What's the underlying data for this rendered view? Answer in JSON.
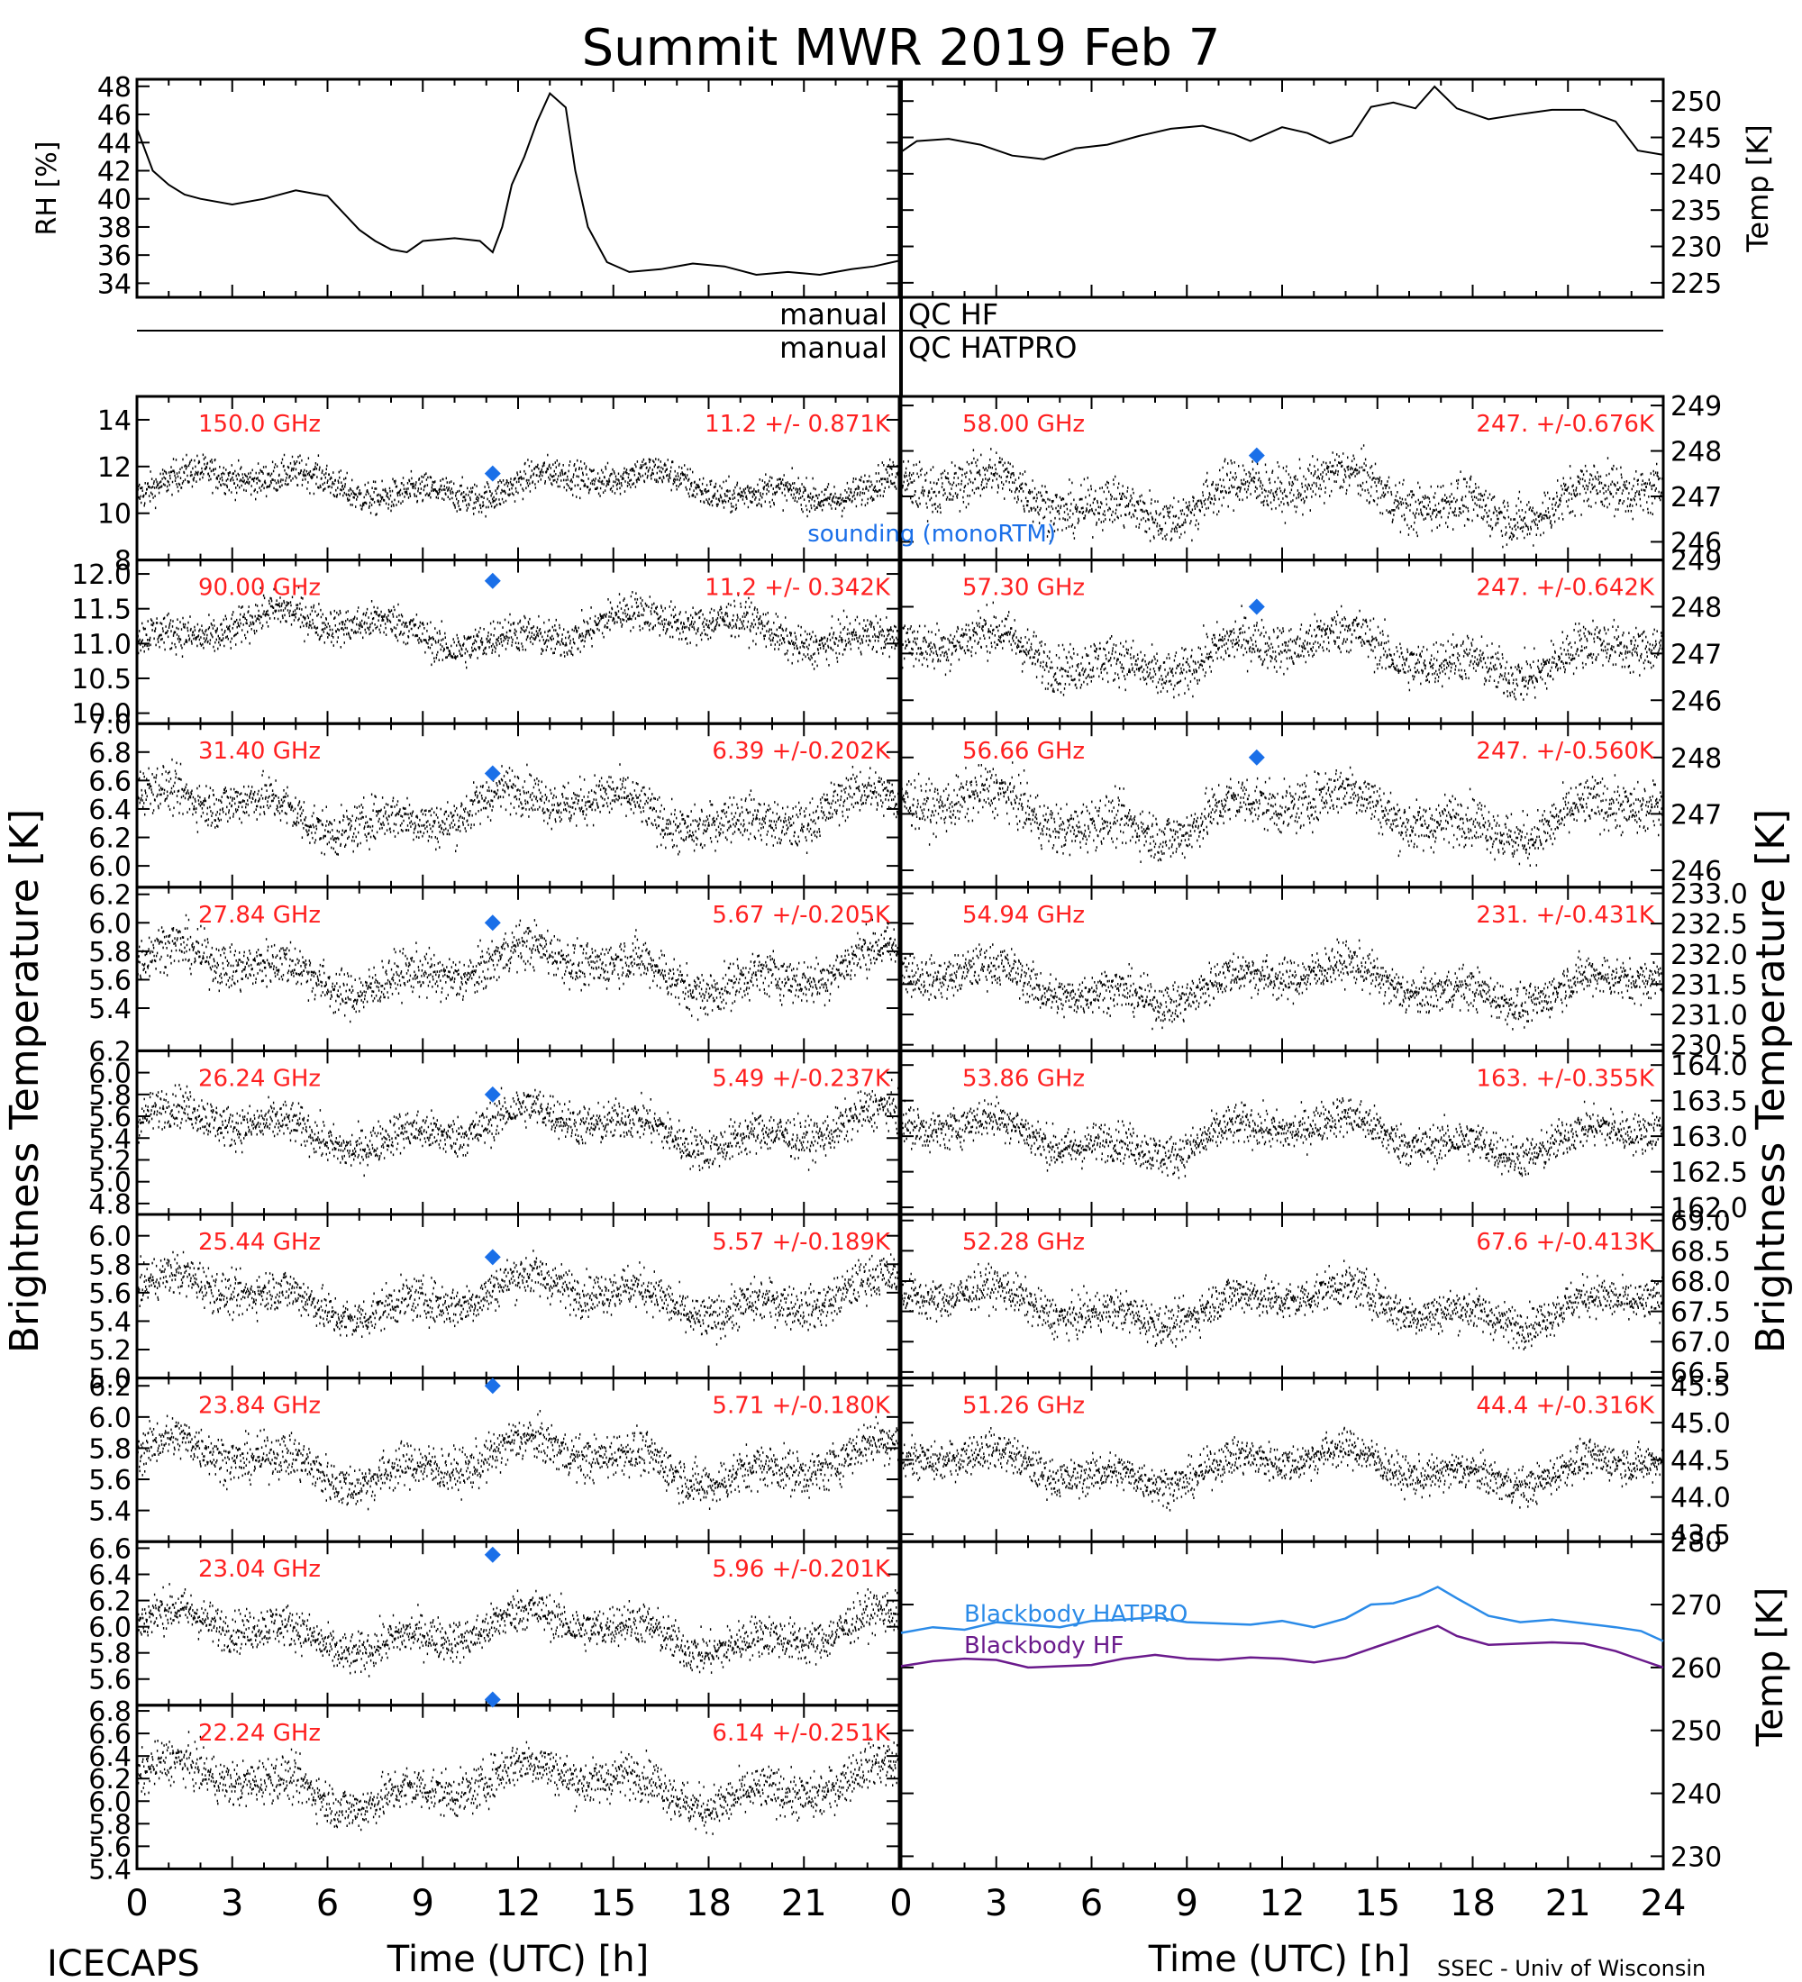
{
  "title": "Summit MWR 2019 Feb  7",
  "footer": {
    "left": "ICECAPS",
    "right": "SSEC - Univ of Wisconsin",
    "xlabel_left": "Time (UTC) [h]",
    "xlabel_right": "Time (UTC) [h]"
  },
  "qc": {
    "left_top": "manual",
    "right_top": "QC HF",
    "left_bottom": "manual",
    "right_bottom": "QC HATPRO"
  },
  "colors": {
    "trace": "#000000",
    "channel_label": "#ff2020",
    "sounding": "#1a6fe8",
    "blackbody_hatpro": "#2b8be8",
    "blackbody_hf": "#6a1a8c"
  },
  "axis_titles": {
    "left_tb": "Brightness Temperature [K]",
    "right_tb": "Brightness Temperature [K]",
    "rh": "RH [%]",
    "temp": "Temp [K]",
    "bb_temp": "Temp [K]"
  },
  "sounding_label": "sounding (monoRTM)",
  "chart_data": [
    {
      "id": "rh",
      "type": "line",
      "xlim": [
        0,
        24
      ],
      "ylim": [
        33,
        48.5
      ],
      "yticks": [
        "34",
        "36",
        "38",
        "40",
        "42",
        "44",
        "46",
        "48"
      ],
      "ylabel": "RH [%]",
      "points": [
        [
          0,
          45
        ],
        [
          0.5,
          42
        ],
        [
          1,
          41
        ],
        [
          1.5,
          40.3
        ],
        [
          2,
          40
        ],
        [
          3,
          39.6
        ],
        [
          4,
          40
        ],
        [
          5,
          40.6
        ],
        [
          6,
          40.2
        ],
        [
          6.5,
          39
        ],
        [
          7,
          37.8
        ],
        [
          7.5,
          37
        ],
        [
          8,
          36.4
        ],
        [
          8.5,
          36.2
        ],
        [
          9,
          37
        ],
        [
          10,
          37.2
        ],
        [
          10.8,
          37
        ],
        [
          11.2,
          36.2
        ],
        [
          11.5,
          38
        ],
        [
          11.8,
          41
        ],
        [
          12.2,
          43
        ],
        [
          12.6,
          45.5
        ],
        [
          13,
          47.5
        ],
        [
          13.5,
          46.5
        ],
        [
          13.8,
          42
        ],
        [
          14.2,
          38
        ],
        [
          14.8,
          35.5
        ],
        [
          15.5,
          34.8
        ],
        [
          16.5,
          35
        ],
        [
          17.5,
          35.4
        ],
        [
          18.5,
          35.2
        ],
        [
          19.5,
          34.6
        ],
        [
          20.5,
          34.8
        ],
        [
          21.5,
          34.6
        ],
        [
          22.5,
          35
        ],
        [
          23.2,
          35.2
        ],
        [
          24,
          35.6
        ]
      ]
    },
    {
      "id": "air_temp",
      "type": "line",
      "xlim": [
        0,
        24
      ],
      "ylim": [
        223,
        253
      ],
      "yticks": [
        "225",
        "230",
        "235",
        "240",
        "245",
        "250"
      ],
      "ylabel": "Temp [K]",
      "points": [
        [
          0,
          243
        ],
        [
          0.5,
          244.5
        ],
        [
          1.5,
          244.8
        ],
        [
          2.5,
          244
        ],
        [
          3.5,
          242.5
        ],
        [
          4.5,
          242
        ],
        [
          5.5,
          243.5
        ],
        [
          6.5,
          244
        ],
        [
          7.5,
          245.2
        ],
        [
          8.5,
          246.2
        ],
        [
          9.5,
          246.6
        ],
        [
          10.5,
          245.4
        ],
        [
          11,
          244.5
        ],
        [
          12,
          246.4
        ],
        [
          12.8,
          245.6
        ],
        [
          13.5,
          244.2
        ],
        [
          14.2,
          245.2
        ],
        [
          14.8,
          249.2
        ],
        [
          15.5,
          249.8
        ],
        [
          16.2,
          249
        ],
        [
          16.8,
          252
        ],
        [
          17.5,
          249
        ],
        [
          18.5,
          247.5
        ],
        [
          19.5,
          248.2
        ],
        [
          20.5,
          248.8
        ],
        [
          21.5,
          248.8
        ],
        [
          22.5,
          247.2
        ],
        [
          23.2,
          243.2
        ],
        [
          24,
          242.6
        ]
      ]
    },
    {
      "id": "ch_150",
      "type": "scatter",
      "label": "150.0 GHz",
      "stats": "11.2 +/- 0.871K",
      "ylim": [
        8,
        15
      ],
      "yticks": [
        "8",
        "10",
        "12",
        "14"
      ],
      "mean": 11.2,
      "std": 0.871,
      "sounding": {
        "x": 11.2,
        "y": 11.7
      }
    },
    {
      "id": "ch_90",
      "type": "scatter",
      "label": "90.00 GHz",
      "stats": "11.2 +/- 0.342K",
      "ylim": [
        9.85,
        12.2
      ],
      "yticks": [
        "10.0",
        "10.5",
        "11.0",
        "11.5",
        "12.0"
      ],
      "mean": 11.2,
      "std": 0.342,
      "sounding": {
        "x": 11.2,
        "y": 11.9
      }
    },
    {
      "id": "ch_3140",
      "type": "scatter",
      "label": "31.40 GHz",
      "stats": "6.39 +/-0.202K",
      "ylim": [
        5.85,
        7.0
      ],
      "yticks": [
        "6.0",
        "6.2",
        "6.4",
        "6.6",
        "6.8",
        "7.0"
      ],
      "mean": 6.39,
      "std": 0.202,
      "sounding": {
        "x": 11.2,
        "y": 6.65
      }
    },
    {
      "id": "ch_2784",
      "type": "scatter",
      "label": "27.84 GHz",
      "stats": "5.67 +/-0.205K",
      "ylim": [
        5.1,
        6.25
      ],
      "yticks": [
        "5.4",
        "5.6",
        "5.8",
        "6.0",
        "6.2"
      ],
      "mean": 5.67,
      "std": 0.205,
      "sounding": {
        "x": 11.2,
        "y": 6.0
      }
    },
    {
      "id": "ch_2624",
      "type": "scatter",
      "label": "26.24 GHz",
      "stats": "5.49 +/-0.237K",
      "ylim": [
        4.7,
        6.2
      ],
      "yticks": [
        "4.8",
        "5.0",
        "5.2",
        "5.4",
        "5.6",
        "5.8",
        "6.0",
        "6.2"
      ],
      "mean": 5.49,
      "std": 0.237,
      "sounding": {
        "x": 11.2,
        "y": 5.8
      }
    },
    {
      "id": "ch_2544",
      "type": "scatter",
      "label": "25.44 GHz",
      "stats": "5.57 +/-0.189K",
      "ylim": [
        5.0,
        6.15
      ],
      "yticks": [
        "5.0",
        "5.2",
        "5.4",
        "5.6",
        "5.8",
        "6.0"
      ],
      "mean": 5.57,
      "std": 0.189,
      "sounding": {
        "x": 11.2,
        "y": 5.85
      }
    },
    {
      "id": "ch_2384",
      "type": "scatter",
      "label": "23.84 GHz",
      "stats": "5.71 +/-0.180K",
      "ylim": [
        5.2,
        6.25
      ],
      "yticks": [
        "5.4",
        "5.6",
        "5.8",
        "6.0",
        "6.2"
      ],
      "mean": 5.71,
      "std": 0.18,
      "sounding": {
        "x": 11.2,
        "y": 6.2
      }
    },
    {
      "id": "ch_2304",
      "type": "scatter",
      "label": "23.04 GHz",
      "stats": "5.96 +/-0.201K",
      "ylim": [
        5.4,
        6.65
      ],
      "yticks": [
        "5.6",
        "5.8",
        "6.0",
        "6.2",
        "6.4",
        "6.6"
      ],
      "mean": 5.96,
      "std": 0.201,
      "sounding": {
        "x": 11.2,
        "y": 6.55
      }
    },
    {
      "id": "ch_2224",
      "type": "scatter",
      "label": "22.24 GHz",
      "stats": "6.14 +/-0.251K",
      "ylim": [
        5.4,
        6.85
      ],
      "yticks": [
        "5.4",
        "5.6",
        "5.8",
        "6.0",
        "6.2",
        "6.4",
        "6.6",
        "6.8"
      ],
      "mean": 6.14,
      "std": 0.251,
      "sounding": {
        "x": 11.2,
        "y": 6.9
      }
    },
    {
      "id": "ch_5800",
      "type": "scatter",
      "label": "58.00 GHz",
      "stats": "247. +/-0.676K",
      "ylim": [
        245.6,
        249.2
      ],
      "yticks": [
        "246",
        "247",
        "248",
        "249"
      ],
      "mean": 247,
      "std": 0.676,
      "sounding": {
        "x": 11.2,
        "y": 247.9
      }
    },
    {
      "id": "ch_5730",
      "type": "scatter",
      "label": "57.30 GHz",
      "stats": "247. +/-0.642K",
      "ylim": [
        245.5,
        249.0
      ],
      "yticks": [
        "246",
        "247",
        "248",
        "249"
      ],
      "mean": 247,
      "std": 0.642,
      "sounding": {
        "x": 11.2,
        "y": 248.0
      }
    },
    {
      "id": "ch_5666",
      "type": "scatter",
      "label": "56.66 GHz",
      "stats": "247. +/-0.560K",
      "ylim": [
        245.7,
        248.6
      ],
      "yticks": [
        "246",
        "247",
        "248"
      ],
      "mean": 247,
      "std": 0.56,
      "sounding": {
        "x": 11.2,
        "y": 248.0
      }
    },
    {
      "id": "ch_5494",
      "type": "scatter",
      "label": "54.94 GHz",
      "stats": "231. +/-0.431K",
      "ylim": [
        230.4,
        233.1
      ],
      "yticks": [
        "230.5",
        "231.0",
        "231.5",
        "232.0",
        "232.5",
        "233.0"
      ],
      "mean": 231.5,
      "std": 0.431
    },
    {
      "id": "ch_5386",
      "type": "scatter",
      "label": "53.86 GHz",
      "stats": "163. +/-0.355K",
      "ylim": [
        161.9,
        164.2
      ],
      "yticks": [
        "162.0",
        "162.5",
        "163.0",
        "163.5",
        "164.0"
      ],
      "mean": 163,
      "std": 0.355
    },
    {
      "id": "ch_5228",
      "type": "scatter",
      "label": "52.28 GHz",
      "stats": "67.6 +/-0.413K",
      "ylim": [
        66.4,
        69.1
      ],
      "yticks": [
        "66.5",
        "67.0",
        "67.5",
        "68.0",
        "68.5",
        "69.0"
      ],
      "mean": 67.6,
      "std": 0.413
    },
    {
      "id": "ch_5126",
      "type": "scatter",
      "label": "51.26 GHz",
      "stats": "44.4 +/-0.316K",
      "ylim": [
        43.4,
        45.6
      ],
      "yticks": [
        "43.5",
        "44.0",
        "44.5",
        "45.0",
        "45.5"
      ],
      "mean": 44.4,
      "std": 0.316
    },
    {
      "id": "blackbody",
      "type": "line",
      "xlim": [
        0,
        24
      ],
      "ylim": [
        228,
        280
      ],
      "yticks": [
        "230",
        "240",
        "250",
        "260",
        "270",
        "280"
      ],
      "ylabel": "Temp [K]",
      "series": [
        {
          "name": "Blackbody HATPRO",
          "points": [
            [
              0,
              265.5
            ],
            [
              1,
              266.4
            ],
            [
              2,
              266
            ],
            [
              3,
              267.2
            ],
            [
              4,
              266.8
            ],
            [
              5,
              266.4
            ],
            [
              6,
              267.4
            ],
            [
              7,
              267.6
            ],
            [
              8,
              268
            ],
            [
              9,
              267.2
            ],
            [
              10,
              267
            ],
            [
              11,
              266.8
            ],
            [
              12,
              267.4
            ],
            [
              13,
              266.4
            ],
            [
              14,
              267.8
            ],
            [
              14.8,
              270
            ],
            [
              15.5,
              270.2
            ],
            [
              16.3,
              271.4
            ],
            [
              16.9,
              272.8
            ],
            [
              17.5,
              271
            ],
            [
              18.5,
              268.2
            ],
            [
              19.5,
              267.2
            ],
            [
              20.5,
              267.6
            ],
            [
              21.5,
              267
            ],
            [
              22.5,
              266.4
            ],
            [
              23.3,
              265.8
            ],
            [
              24,
              264.2
            ]
          ]
        },
        {
          "name": "Blackbody HF",
          "points": [
            [
              0,
              260.2
            ],
            [
              1,
              261
            ],
            [
              2,
              261.4
            ],
            [
              3,
              261.2
            ],
            [
              4,
              260
            ],
            [
              5,
              260.2
            ],
            [
              6,
              260.4
            ],
            [
              7,
              261.4
            ],
            [
              8,
              262
            ],
            [
              9,
              261.4
            ],
            [
              10,
              261.2
            ],
            [
              11,
              261.6
            ],
            [
              12,
              261.4
            ],
            [
              13,
              260.8
            ],
            [
              14,
              261.6
            ],
            [
              14.8,
              263
            ],
            [
              15.5,
              264.2
            ],
            [
              16.3,
              265.6
            ],
            [
              16.9,
              266.6
            ],
            [
              17.5,
              265
            ],
            [
              18.5,
              263.6
            ],
            [
              19.5,
              263.8
            ],
            [
              20.5,
              264
            ],
            [
              21.5,
              263.8
            ],
            [
              22.5,
              262.6
            ],
            [
              23.3,
              261.2
            ],
            [
              24,
              260
            ]
          ]
        }
      ]
    }
  ],
  "xaxis": {
    "ticks": [
      "0",
      "3",
      "6",
      "9",
      "12",
      "15",
      "18",
      "21",
      "24"
    ],
    "xlim": [
      0,
      24
    ]
  }
}
